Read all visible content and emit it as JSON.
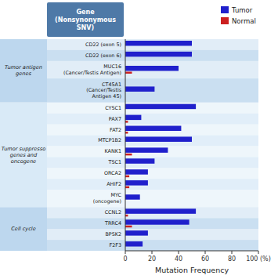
{
  "chart_data": {
    "type": "bar",
    "orientation": "horizontal",
    "ylabel": "Gene\n(Nonsynonymous\nSNV)",
    "xlabel": "Mutation Frequency",
    "categories": [
      "CD22 (exon 5)",
      "CD22 (exon 6)",
      "MUC16\n(Cancer/Testis Antigen)",
      "CT45A1\n(Cancer/Testis\nAntigen 45)",
      "CYSC1",
      "PAX7",
      "FAT2",
      "MTCP1B2",
      "KANK1",
      "TSC1",
      "ORCA2",
      "AHIF2",
      "MYC\n(oncogene)",
      "CCNL2",
      "TRRC4",
      "BPSK2",
      "F2F3"
    ],
    "series": [
      {
        "name": "Tumor",
        "color": "#2020CC",
        "values": [
          50,
          50,
          40,
          22,
          53,
          12,
          42,
          50,
          32,
          22,
          17,
          17,
          11,
          53,
          48,
          17,
          13
        ]
      },
      {
        "name": "Normal",
        "color": "#CC2020",
        "values": [
          0,
          0,
          5,
          0,
          0,
          2,
          2,
          0,
          5,
          0,
          3,
          3,
          0,
          2,
          5,
          0,
          0
        ]
      }
    ],
    "groups": [
      {
        "name": "Tumor antigen\ngenes",
        "range": [
          0,
          3
        ],
        "color": "#BDD7EE"
      },
      {
        "name": "Tumor suppresso\ngenes and\noncogene",
        "range": [
          4,
          12
        ],
        "color": "#D9EAF7"
      },
      {
        "name": "Cell cycle",
        "range": [
          13,
          16
        ],
        "color": "#BDD7EE"
      }
    ],
    "xlim": [
      0,
      100
    ],
    "xticks": [
      0,
      20,
      40,
      60,
      80,
      {
        "value": 100,
        "label": "100 (%)"
      }
    ],
    "grid": false,
    "legend": "upper right"
  }
}
